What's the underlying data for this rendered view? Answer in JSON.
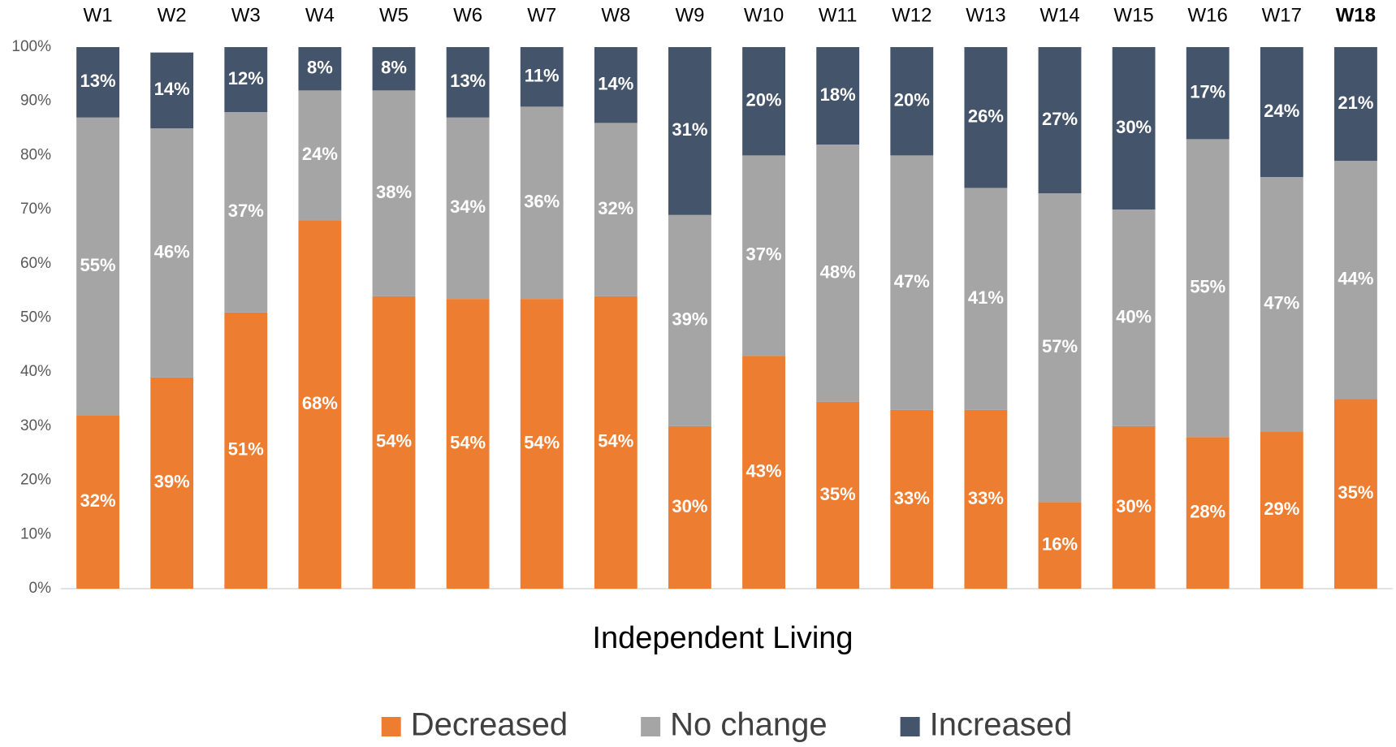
{
  "chart_data": {
    "type": "stacked_bar_100",
    "x_label": "Independent Living",
    "categories": [
      "W1",
      "W2",
      "W3",
      "W4",
      "W5",
      "W6",
      "W7",
      "W8",
      "W9",
      "W10",
      "W11",
      "W12",
      "W13",
      "W14",
      "W15",
      "W16",
      "W17",
      "W18"
    ],
    "category_colors": [
      "#000000",
      "#000000",
      "#000000",
      "#000000",
      "#000000",
      "#000000",
      "#000000",
      "#000000",
      "#000000",
      "#000000",
      "#000000",
      "#000000",
      "#000000",
      "#000000",
      "#000000",
      "#000000",
      "#000000",
      "#70ad47"
    ],
    "series": [
      {
        "name": "Decreased",
        "color": "#ed7d31",
        "values": [
          32,
          39,
          51,
          68,
          54,
          53.5,
          53.5,
          54,
          30,
          43,
          34.5,
          33,
          33,
          16,
          30,
          28,
          29,
          35
        ],
        "value_labels": [
          "32%",
          "39%",
          "51%",
          "68%",
          "54%",
          "54%",
          "54%",
          "54%",
          "30%",
          "43%",
          "35%",
          "33%",
          "33%",
          "16%",
          "30%",
          "28%",
          "29%",
          "35%"
        ]
      },
      {
        "name": "No change",
        "color": "#a5a5a5",
        "values": [
          55,
          46,
          37,
          24,
          38,
          33.5,
          35.5,
          32,
          39,
          37,
          47.5,
          47,
          41,
          57,
          40,
          55,
          47,
          44
        ],
        "value_labels": [
          "55%",
          "46%",
          "37%",
          "24%",
          "38%",
          "34%",
          "36%",
          "32%",
          "39%",
          "37%",
          "48%",
          "47%",
          "41%",
          "57%",
          "40%",
          "55%",
          "47%",
          "44%"
        ]
      },
      {
        "name": "Increased",
        "color": "#44546a",
        "values": [
          13,
          14,
          12,
          8,
          8,
          13,
          11,
          14,
          31,
          20,
          18,
          20,
          26,
          27,
          30,
          17,
          24,
          21
        ],
        "value_labels": [
          "13%",
          "14%",
          "12%",
          "8%",
          "8%",
          "13%",
          "11%",
          "14%",
          "31%",
          "20%",
          "18%",
          "20%",
          "26%",
          "27%",
          "30%",
          "17%",
          "24%",
          "21%"
        ]
      }
    ],
    "ylim": [
      0,
      100
    ],
    "yticks": [
      {
        "value": 0,
        "label": "0%"
      },
      {
        "value": 10,
        "label": "10%"
      },
      {
        "value": 20,
        "label": "20%"
      },
      {
        "value": 30,
        "label": "30%"
      },
      {
        "value": 40,
        "label": "40%"
      },
      {
        "value": 50,
        "label": "50%"
      },
      {
        "value": 60,
        "label": "60%"
      },
      {
        "value": 70,
        "label": "70%"
      },
      {
        "value": 80,
        "label": "80%"
      },
      {
        "value": 90,
        "label": "90%"
      },
      {
        "value": 100,
        "label": "100%"
      }
    ],
    "grid": false,
    "legend": "bottom"
  }
}
